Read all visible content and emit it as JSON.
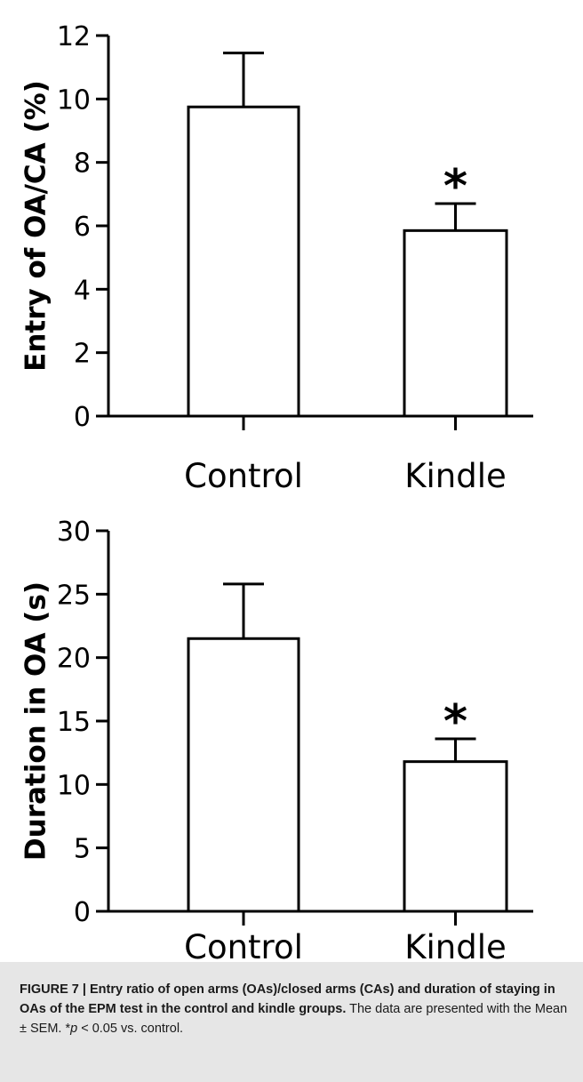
{
  "chart_data": [
    {
      "type": "bar",
      "categories": [
        "Control",
        "Kindle"
      ],
      "values": [
        9.75,
        5.85
      ],
      "errors": [
        1.7,
        0.85
      ],
      "significance": [
        "",
        "*"
      ],
      "ylabel": "Entry of OA/CA (%)",
      "ylim": [
        0,
        12
      ],
      "yticks": [
        0,
        2,
        4,
        6,
        8,
        10,
        12
      ],
      "grid": false
    },
    {
      "type": "bar",
      "categories": [
        "Control",
        "Kindle"
      ],
      "values": [
        21.5,
        11.8
      ],
      "errors": [
        4.3,
        1.8
      ],
      "significance": [
        "",
        "*"
      ],
      "ylabel": "Duration in OA (s)",
      "ylim": [
        0,
        30
      ],
      "yticks": [
        0,
        5,
        10,
        15,
        20,
        25,
        30
      ],
      "grid": false
    }
  ],
  "caption": {
    "bold": "FIGURE 7 | Entry ratio of open arms (OAs)/closed arms (CAs) and duration of staying in OAs of the EPM test in the control and kindle groups.",
    "text_before": " The data are presented with the Mean ± SEM. *",
    "p": "p",
    "text_after": " < 0.05 vs. control."
  }
}
